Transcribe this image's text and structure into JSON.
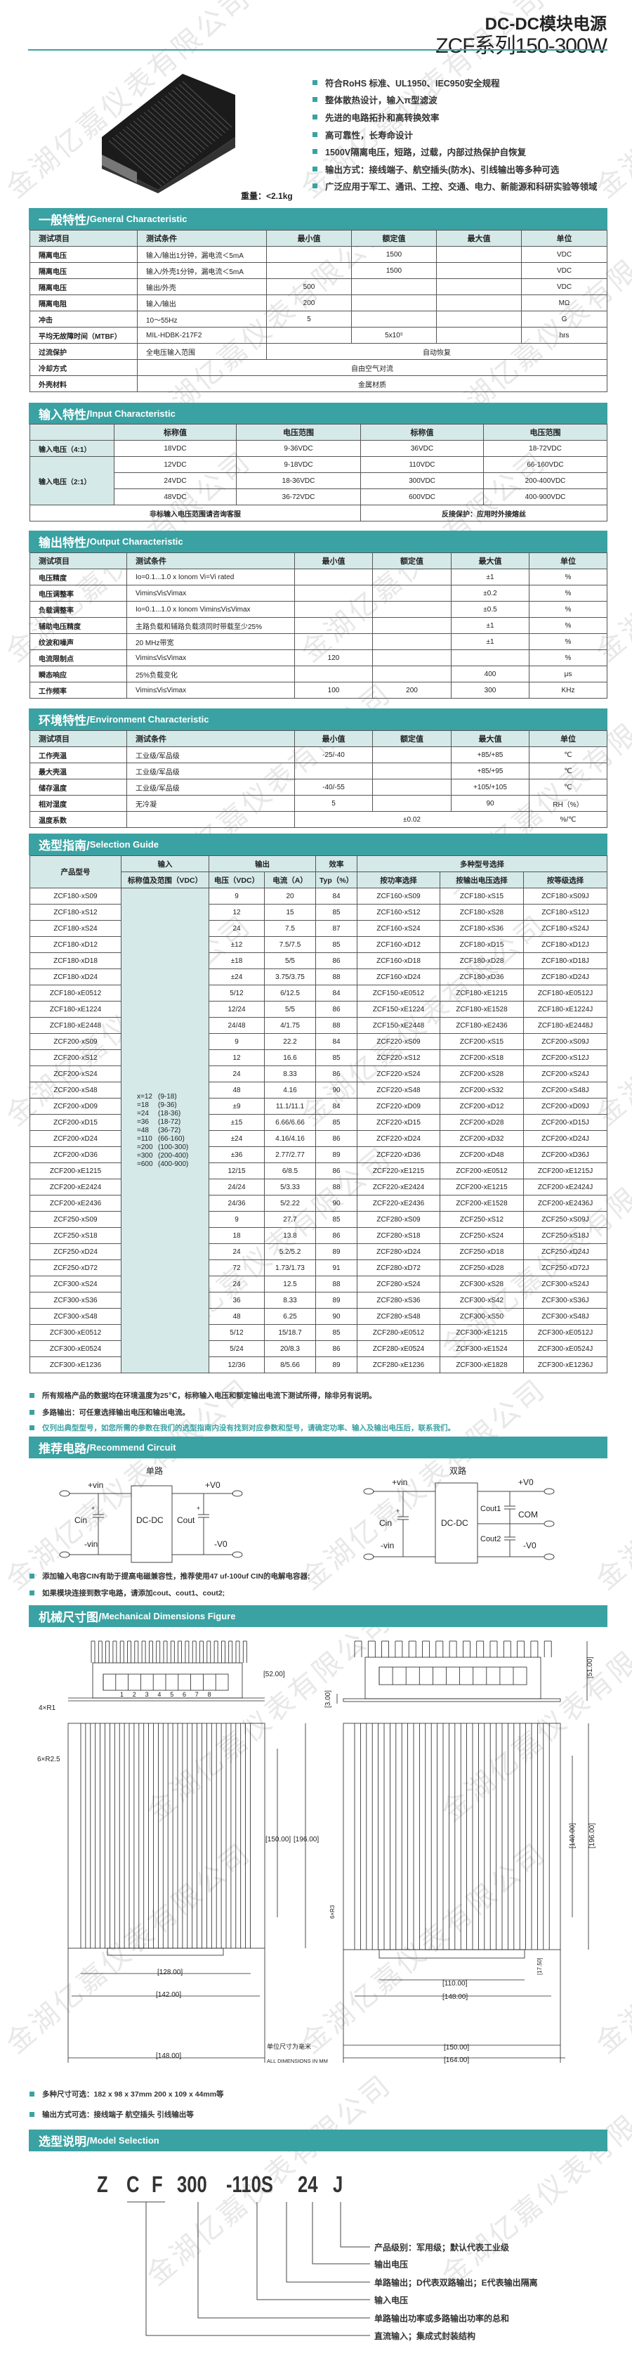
{
  "header": {
    "title_line1": "DC-DC模块电源",
    "title_line2": "ZCF系列150-300W"
  },
  "colors": {
    "accent": "#3aa2a3",
    "header_fill": "#d6e9e9"
  },
  "features": [
    "符合RoHS 标准、UL1950、IEC950安全规程",
    "整体散热设计，输入π型滤波",
    "先进的电路拓扑和高转换效率",
    "高可靠性，长寿命设计",
    "1500V隔离电压，短路，过载，内部过热保护自恢复",
    "输出方式：接线端子、航空插头(防水)、引线输出等多种可选",
    "广泛应用于军工、通讯、工控、交通、电力、新能源和科研实验等领域"
  ],
  "weight": "重量：<2.1kg",
  "watermark": "金湖亿嘉仪表有限公司",
  "general": {
    "title_cn": "一般特性/",
    "title_en": "General Characteristic",
    "headers": [
      "测试项目",
      "测试条件",
      "最小值",
      "额定值",
      "最大值",
      "单位"
    ],
    "rows": [
      [
        "隔离电压",
        "输入/输出1分钟，漏电流＜5mA",
        "",
        "1500",
        "",
        "VDC"
      ],
      [
        "隔离电压",
        "输入/外壳1分钟，漏电流＜5mA",
        "",
        "1500",
        "",
        "VDC"
      ],
      [
        "隔离电压",
        "输出/外壳",
        "500",
        "",
        "",
        "VDC"
      ],
      [
        "隔离电阻",
        "输入/输出",
        "200",
        "",
        "",
        "MΩ"
      ],
      [
        "冲击",
        "10～55Hz",
        "5",
        "",
        "",
        "G"
      ],
      [
        "平均无故障时间（MTBF）",
        "MIL-HDBK-217F2",
        "",
        "5x10⁵",
        "",
        "hrs"
      ]
    ],
    "overcurrent": {
      "item": "过流保护",
      "condition": "全电压输入范围",
      "value": "自动恢复"
    },
    "cooling": {
      "item": "冷却方式",
      "value": "自由空气对流"
    },
    "case": {
      "item": "外壳材料",
      "value": "金属材质"
    }
  },
  "input": {
    "title_cn": "输入特性/",
    "title_en": "Input Characteristic",
    "headers": [
      "",
      "标称值",
      "电压范围",
      "标称值",
      "电压范围"
    ],
    "label_41": "输入电压（4:1）",
    "label_21": "输入电压（2:1）",
    "rows": [
      [
        "18VDC",
        "9-36VDC",
        "36VDC",
        "18-72VDC"
      ],
      [
        "12VDC",
        "9-18VDC",
        "110VDC",
        "66-160VDC"
      ],
      [
        "24VDC",
        "18-36VDC",
        "300VDC",
        "200-400VDC"
      ],
      [
        "48VDC",
        "36-72VDC",
        "600VDC",
        "400-900VDC"
      ]
    ],
    "note_left": "非标输入电压范围请咨询客服",
    "note_right": "反接保护：应用时外接熔丝"
  },
  "output": {
    "title_cn": "输出特性/",
    "title_en": "Output Characteristic",
    "headers": [
      "测试项目",
      "测试条件",
      "最小值",
      "额定值",
      "最大值",
      "单位"
    ],
    "rows": [
      [
        "电压精度",
        "Io=0.1...1.0 x Ionom Vi=Vi rated",
        "",
        "",
        "±1",
        "%"
      ],
      [
        "电压调整率",
        "Vimin≤Vi≤Vimax",
        "",
        "",
        "±0.2",
        "%"
      ],
      [
        "负载调整率",
        "Io=0.1...1.0 x Ionom Vimin≤Vi≤Vimax",
        "",
        "",
        "±0.5",
        "%"
      ],
      [
        "辅助电压精度",
        "主路负载和辅路负载须同时带载至少25%",
        "",
        "",
        "±1",
        "%"
      ],
      [
        "纹波和噪声",
        "20 MHz带宽",
        "",
        "",
        "±1",
        "%"
      ],
      [
        "电流限制点",
        "Vimin≤Vi≤Vimax",
        "120",
        "",
        "",
        "%"
      ],
      [
        "瞬态响应",
        "25%负载变化",
        "",
        "",
        "400",
        "μs"
      ],
      [
        "工作频率",
        "Vimin≤Vi≤Vimax",
        "100",
        "200",
        "300",
        "KHz"
      ]
    ]
  },
  "environment": {
    "title_cn": "环境特性/",
    "title_en": "Environment Characteristic",
    "headers": [
      "测试项目",
      "测试条件",
      "最小值",
      "额定值",
      "最大值",
      "单位"
    ],
    "rows": [
      [
        "工作壳温",
        "工业级/军品级",
        "-25/-40",
        "",
        "+85/+85",
        "℃"
      ],
      [
        "最大壳温",
        "工业级/军品级",
        "",
        "",
        "+85/+95",
        "℃"
      ],
      [
        "储存温度",
        "工业级/军品级",
        "-40/-55",
        "",
        "+105/+105",
        "℃"
      ],
      [
        "相对湿度",
        "无冷凝",
        "5",
        "",
        "90",
        "RH（%）"
      ]
    ],
    "tempcoef": {
      "item": "温度系数",
      "condition": "",
      "value": "±0.02",
      "unit": "%/℃"
    }
  },
  "selection": {
    "title_cn": "选型指南/",
    "title_en": "Selection Guide",
    "h_model": "产品型号",
    "h_input": "输入",
    "h_output": "输出",
    "h_eff": "效率",
    "h_multi": "多种型号选择",
    "h2": [
      "标称值及范围（VDC）",
      "电压（VDC）",
      "电流（A）",
      "Typ（%）",
      "按功率选择",
      "按输出电压选择",
      "按等级选择"
    ],
    "input_options": [
      {
        "k": "x=12",
        "r": "(9-18)"
      },
      {
        "k": "=18",
        "r": "(9-36)"
      },
      {
        "k": "=24",
        "r": "(18-36)"
      },
      {
        "k": "=36",
        "r": "(18-72)"
      },
      {
        "k": "=48",
        "r": "(36-72)"
      },
      {
        "k": "=110",
        "r": "(66-160)"
      },
      {
        "k": "=200",
        "r": "(100-300)"
      },
      {
        "k": "=300",
        "r": "(200-400)"
      },
      {
        "k": "=600",
        "r": "(400-900)"
      }
    ],
    "rows": [
      [
        "ZCF180-xS09",
        "9",
        "20",
        "84",
        "ZCF160-xS09",
        "ZCF180-xS15",
        "ZCF180-xS09J"
      ],
      [
        "ZCF180-xS12",
        "12",
        "15",
        "85",
        "ZCF160-xS12",
        "ZCF180-xS28",
        "ZCF180-xS12J"
      ],
      [
        "ZCF180-xS24",
        "24",
        "7.5",
        "87",
        "ZCF160-xS24",
        "ZCF180-xS36",
        "ZCF180-xS24J"
      ],
      [
        "ZCF180-xD12",
        "±12",
        "7.5/7.5",
        "85",
        "ZCF160-xD12",
        "ZCF180-xD15",
        "ZCF180-xD12J"
      ],
      [
        "ZCF180-xD18",
        "±18",
        "5/5",
        "86",
        "ZCF160-xD18",
        "ZCF180-xD28",
        "ZCF180-xD18J"
      ],
      [
        "ZCF180-xD24",
        "±24",
        "3.75/3.75",
        "88",
        "ZCF160-xD24",
        "ZCF180-xD36",
        "ZCF180-xD24J"
      ],
      [
        "ZCF180-xE0512",
        "5/12",
        "6/12.5",
        "84",
        "ZCF150-xE0512",
        "ZCF180-xE1215",
        "ZCF180-xE0512J"
      ],
      [
        "ZCF180-xE1224",
        "12/24",
        "5/5",
        "86",
        "ZCF150-xE1224",
        "ZCF180-xE1528",
        "ZCF180-xE1224J"
      ],
      [
        "ZCF180-xE2448",
        "24/48",
        "4/1.75",
        "88",
        "ZCF150-xE2448",
        "ZCF180-xE2436",
        "ZCF180-xE2448J"
      ],
      [
        "ZCF200-xS09",
        "9",
        "22.2",
        "84",
        "ZCF220-xS09",
        "ZCF200-xS15",
        "ZCF200-xS09J"
      ],
      [
        "ZCF200-xS12",
        "12",
        "16.6",
        "85",
        "ZCF220-xS12",
        "ZCF200-xS18",
        "ZCF200-xS12J"
      ],
      [
        "ZCF200-xS24",
        "24",
        "8.33",
        "86",
        "ZCF220-xS24",
        "ZCF200-xS28",
        "ZCF200-xS24J"
      ],
      [
        "ZCF200-xS48",
        "48",
        "4.16",
        "90",
        "ZCF220-xS48",
        "ZCF200-xS32",
        "ZCF200-xS48J"
      ],
      [
        "ZCF200-xD09",
        "±9",
        "11.1/11.1",
        "84",
        "ZCF220-xD09",
        "ZCF200-xD12",
        "ZCF200-xD09J"
      ],
      [
        "ZCF200-xD15",
        "±15",
        "6.66/6.66",
        "85",
        "ZCF220-xD15",
        "ZCF200-xD28",
        "ZCF200-xD15J"
      ],
      [
        "ZCF200-xD24",
        "±24",
        "4.16/4.16",
        "86",
        "ZCF220-xD24",
        "ZCF200-xD32",
        "ZCF200-xD24J"
      ],
      [
        "ZCF200-xD36",
        "±36",
        "2.77/2.77",
        "89",
        "ZCF220-xD36",
        "ZCF200-xD48",
        "ZCF200-xD36J"
      ],
      [
        "ZCF200-xE1215",
        "12/15",
        "6/8.5",
        "86",
        "ZCF220-xE1215",
        "ZCF200-xE0512",
        "ZCF200-xE1215J"
      ],
      [
        "ZCF200-xE2424",
        "24/24",
        "5/3.33",
        "88",
        "ZCF220-xE2424",
        "ZCF200-xE1215",
        "ZCF200-xE2424J"
      ],
      [
        "ZCF200-xE2436",
        "24/36",
        "5/2.22",
        "90",
        "ZCF220-xE2436",
        "ZCF200-xE1528",
        "ZCF200-xE2436J"
      ],
      [
        "ZCF250-xS09",
        "9",
        "27.7",
        "85",
        "ZCF280-xS09",
        "ZCF250-xS12",
        "ZCF250-xS09J"
      ],
      [
        "ZCF250-xS18",
        "18",
        "13.8",
        "86",
        "ZCF280-xS18",
        "ZCF250-xS24",
        "ZCF250-xS18J"
      ],
      [
        "ZCF250-xD24",
        "24",
        "5.2/5.2",
        "89",
        "ZCF280-xD24",
        "ZCF250-xD18",
        "ZCF250-xD24J"
      ],
      [
        "ZCF250-xD72",
        "72",
        "1.73/1.73",
        "91",
        "ZCF280-xD72",
        "ZCF250-xD28",
        "ZCF250-xD72J"
      ],
      [
        "ZCF300-xS24",
        "24",
        "12.5",
        "88",
        "ZCF280-xS24",
        "ZCF300-xS28",
        "ZCF300-xS24J"
      ],
      [
        "ZCF300-xS36",
        "36",
        "8.33",
        "89",
        "ZCF280-xS36",
        "ZCF300-xS42",
        "ZCF300-xS36J"
      ],
      [
        "ZCF300-xS48",
        "48",
        "6.25",
        "90",
        "ZCF280-xS48",
        "ZCF300-xS50",
        "ZCF300-xS48J"
      ],
      [
        "ZCF300-xE0512",
        "5/12",
        "15/18.7",
        "85",
        "ZCF280-xE0512",
        "ZCF300-xE1215",
        "ZCF300-xE0512J"
      ],
      [
        "ZCF300-xE0524",
        "5/24",
        "20/8.3",
        "86",
        "ZCF280-xE0524",
        "ZCF300-xE1524",
        "ZCF300-xE0524J"
      ],
      [
        "ZCF300-xE1236",
        "12/36",
        "8/5.66",
        "89",
        "ZCF280-xE1236",
        "ZCF300-xE1828",
        "ZCF300-xE1236J"
      ]
    ],
    "notes": [
      "所有规格产品的数据均在环境温度为25℃，标称输入电压和额定输出电流下测试所得，除非另有说明。",
      "多路输出：可任意选择输出电压和输出电流。",
      "仅列出典型型号，如您所需的参数在我们的选型指南内没有找到对应参数和型号，请确定功率、输入及输出电压后，联系我们。"
    ]
  },
  "circuit": {
    "title_cn": "推荐电路/",
    "title_en": "Recommend Circuit",
    "single": {
      "title": "单路",
      "vin_p": "+vin",
      "vin_n": "-vin",
      "vo_p": "+V0",
      "vo_n": "-V0",
      "cin": "Cin",
      "cout": "Cout",
      "box": "DC-DC",
      "plus": "+"
    },
    "dual": {
      "title": "双路",
      "vin_p": "+vin",
      "vin_n": "-vin",
      "vo_p": "+V0",
      "vo_n": "-V0",
      "com": "COM",
      "cin": "Cin",
      "cout1": "Cout1",
      "cout2": "Cout2",
      "box": "DC-DC",
      "plus": "+"
    },
    "notes": [
      "添加输入电容CIN有助于提高电磁兼容性，推荐使用47 uf-100uf CIN的电解电容器;",
      "如果模块连接到数字电路，请添加cout、cout1、cout2;"
    ]
  },
  "mechanical": {
    "title_cn": "机械尺寸图/",
    "title_en": "Mechanical Dimensions Figure",
    "left": {
      "height": "[52.00]",
      "r1": "4×R1",
      "r25": "6×R2.5",
      "d150": "[150.00]",
      "d196": "[196.00]",
      "w128": "[128.00]",
      "w142": "[142.00]",
      "w148": "[148.00]",
      "pins": [
        "1",
        "2",
        "3",
        "4",
        "5",
        "6",
        "7",
        "8"
      ]
    },
    "right": {
      "height": "[51.00]",
      "base": "[3.00]",
      "d140": "[140.00]",
      "d196": "[196.00]",
      "r3": "6×R3",
      "d175": "[17.50]",
      "w110": "[110.00]",
      "w148": "[148.00]",
      "w150": "[150.00]",
      "w164": "[164.00]"
    },
    "unit_cn": "单位尺寸为毫米",
    "unit_en": "ALL DIMENSIONS IN MM",
    "notes": [
      "多种尺寸可选：182 x 98 x 37mm   200 x 109 x 44mm等",
      "输出方式可选：接线端子 航空插头 引线输出等"
    ]
  },
  "model": {
    "title_cn": "选型说明/",
    "title_en": "Model Selection",
    "code": [
      "Z",
      "C",
      "F",
      "300",
      "-110S",
      "24",
      "J"
    ],
    "labels": [
      "产品级别：军用级；默认代表工业级",
      "输出电压",
      "单路输出；D代表双路输出；E代表输出隔离",
      "输入电压",
      "单路输出功率或多路输出功率的总和",
      "直流输入；集成式封装结构"
    ]
  }
}
